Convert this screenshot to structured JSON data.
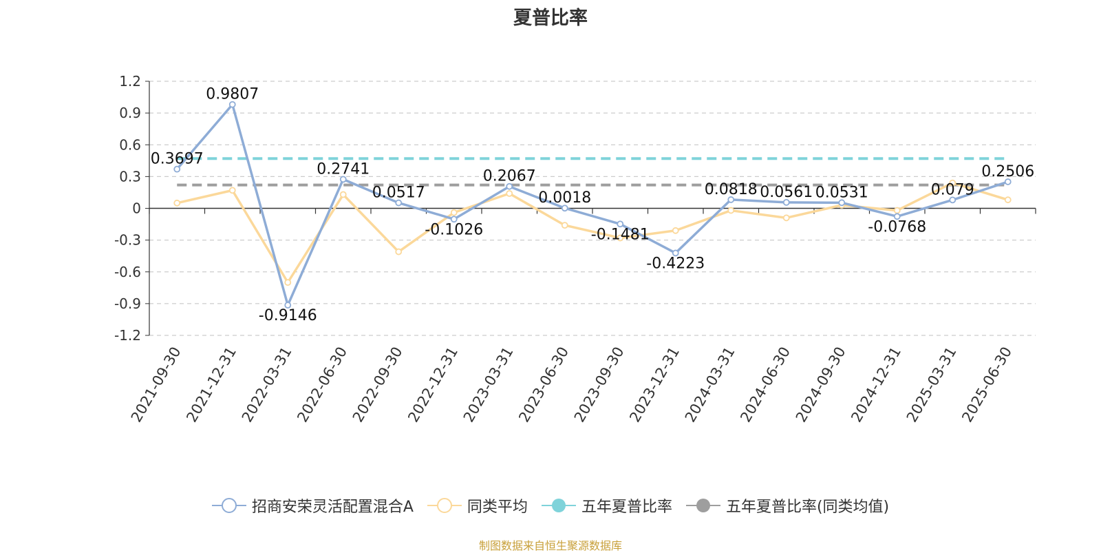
{
  "chart_data": {
    "type": "line",
    "title": "夏普比率",
    "categories": [
      "2021-09-30",
      "2021-12-31",
      "2022-03-31",
      "2022-06-30",
      "2022-09-30",
      "2022-12-31",
      "2023-03-31",
      "2023-06-30",
      "2023-09-30",
      "2023-12-31",
      "2024-03-31",
      "2024-06-30",
      "2024-09-30",
      "2024-12-31",
      "2025-03-31",
      "2025-06-30"
    ],
    "ylim": [
      -1.2,
      1.2
    ],
    "yticks": [
      "1.2",
      "0.9",
      "0.6",
      "0.3",
      "0",
      "-0.3",
      "-0.6",
      "-0.9",
      "-1.2"
    ],
    "grid": true,
    "legend_position": "bottom",
    "series": [
      {
        "name": "招商安荣灵活配置混合A",
        "color": "#8eacd6",
        "values": [
          0.3697,
          0.9807,
          -0.9146,
          0.2741,
          0.0517,
          -0.1026,
          0.2067,
          0.0018,
          -0.1481,
          -0.4223,
          0.0818,
          0.0561,
          0.0531,
          -0.0768,
          0.079,
          0.2506
        ],
        "labels": [
          "0.3697",
          "0.9807",
          "-0.9146",
          "0.2741",
          "0.0517",
          "-0.1026",
          "0.2067",
          "0.0018",
          "-0.1481",
          "-0.4223",
          "0.0818",
          "0.0561",
          "0.0531",
          "-0.0768",
          "0.079",
          "0.2506"
        ]
      },
      {
        "name": "同类平均",
        "color": "#fbd89a",
        "values": [
          0.05,
          0.17,
          -0.7,
          0.13,
          -0.41,
          -0.04,
          0.14,
          -0.16,
          -0.28,
          -0.21,
          -0.02,
          -0.09,
          0.03,
          -0.02,
          0.24,
          0.08
        ]
      },
      {
        "name": "五年夏普比率",
        "color": "#7fd3da",
        "style": "dashed",
        "value": 0.47
      },
      {
        "name": "五年夏普比率(同类均值)",
        "color": "#9e9e9e",
        "style": "dashed",
        "value": 0.22
      }
    ]
  },
  "source_note": "制图数据来自恒生聚源数据库"
}
